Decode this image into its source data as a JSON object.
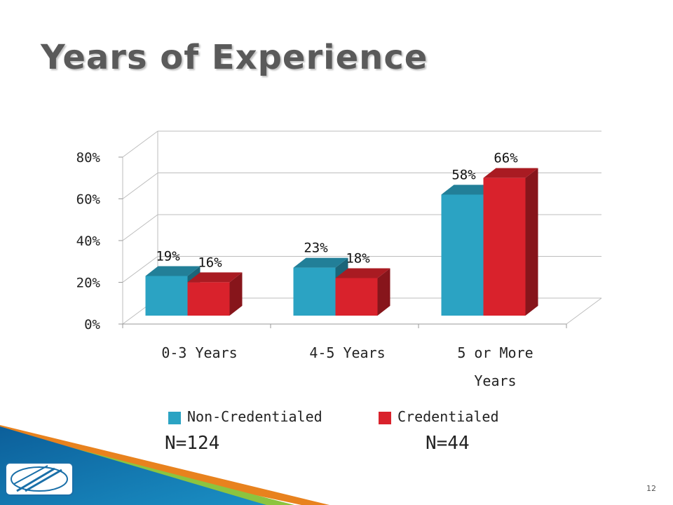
{
  "slide": {
    "title": "Years of Experience",
    "page_number": "12"
  },
  "chart_data": {
    "type": "bar",
    "style": "3d-clustered-column",
    "categories": [
      "0-3 Years",
      "4-5 Years",
      "5 or More Years"
    ],
    "series": [
      {
        "name": "Non-Credentialed",
        "values": [
          19,
          23,
          58
        ],
        "labels": [
          "19%",
          "23%",
          "58%"
        ],
        "color": "#2ba3c3"
      },
      {
        "name": "Credentialed",
        "values": [
          16,
          18,
          66
        ],
        "labels": [
          "16%",
          "18%",
          "66%"
        ],
        "color": "#d9222c"
      }
    ],
    "yticks": [
      "0%",
      "20%",
      "40%",
      "60%",
      "80%"
    ],
    "ylim": [
      0,
      80
    ],
    "unit": "%",
    "grid": true,
    "legend_position": "bottom"
  },
  "sample_sizes": {
    "non_credentialed": "N=124",
    "credentialed": "N=44"
  }
}
